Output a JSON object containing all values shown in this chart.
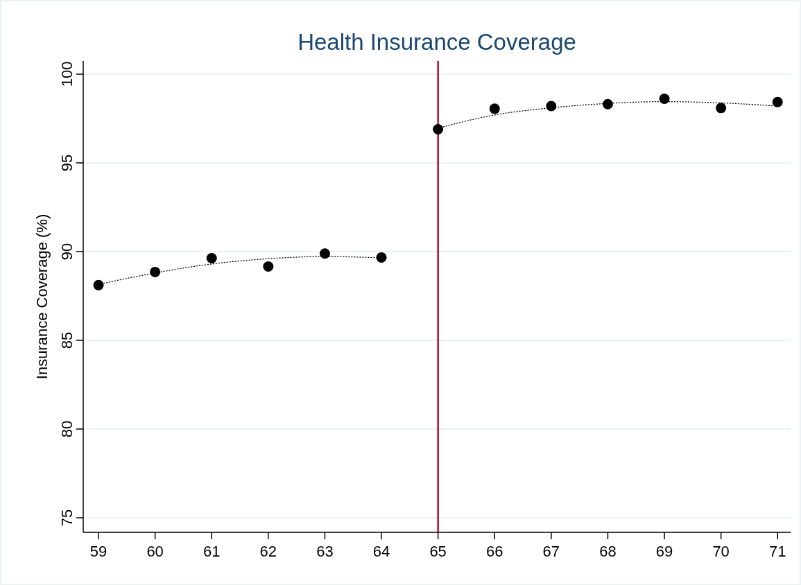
{
  "chart_data": {
    "type": "scatter",
    "title": "Health Insurance Coverage",
    "ylabel": "Insurance Coverage (%)",
    "xlim": [
      58.73,
      71.23
    ],
    "ylim": [
      74.18,
      100.74
    ],
    "xticks": [
      59,
      60,
      61,
      62,
      63,
      64,
      65,
      66,
      67,
      68,
      69,
      70,
      71
    ],
    "yticks": [
      75,
      80,
      85,
      90,
      95,
      100
    ],
    "grid": "y",
    "series": [
      {
        "marker": "circle",
        "color": "#000000",
        "x": [
          59,
          60,
          61,
          62,
          63,
          64,
          65,
          66,
          67,
          68,
          69,
          70,
          71
        ],
        "values": [
          88.11,
          88.85,
          89.63,
          89.16,
          89.89,
          89.67,
          96.89,
          98.05,
          98.2,
          98.31,
          98.61,
          98.09,
          98.43
        ]
      },
      {
        "type": "line",
        "line_style": "dotted",
        "color": "#000000",
        "x": [
          59,
          60,
          61,
          62,
          63,
          64
        ],
        "values": [
          88.15,
          88.8,
          89.3,
          89.6,
          89.72,
          89.65
        ]
      },
      {
        "type": "line",
        "line_style": "dotted",
        "color": "#000000",
        "x": [
          65,
          66,
          67,
          68,
          69,
          70,
          71
        ],
        "values": [
          96.95,
          97.7,
          98.1,
          98.35,
          98.45,
          98.38,
          98.2
        ]
      }
    ],
    "ref_lines": [
      {
        "axis": "x",
        "value": 65,
        "color": "#c10534",
        "line_style": "solid"
      }
    ]
  }
}
